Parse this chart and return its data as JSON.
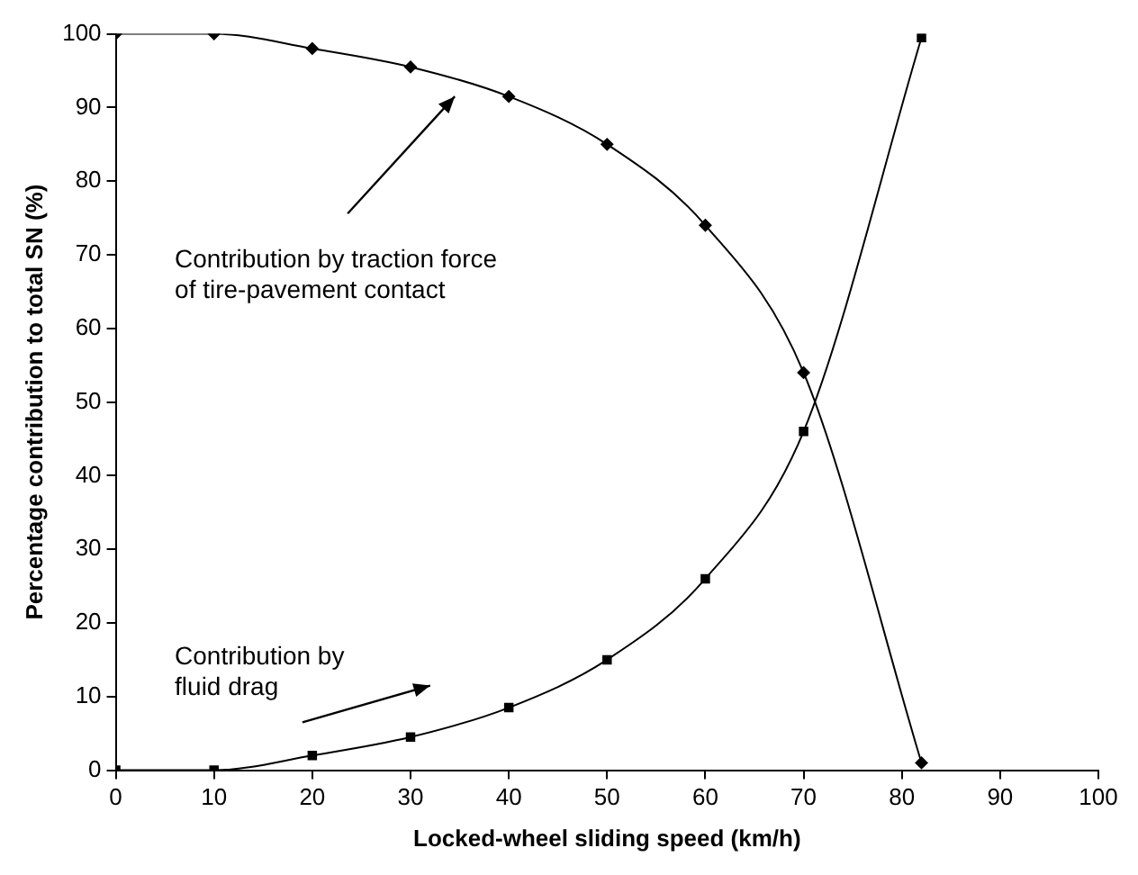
{
  "chart_data": {
    "type": "line",
    "xlabel": "Locked-wheel sliding speed (km/h)",
    "ylabel": "Percentage contribution to total SN (%)",
    "xlim": [
      0,
      100
    ],
    "xticks": [
      0,
      10,
      20,
      30,
      40,
      50,
      60,
      70,
      80,
      90,
      100
    ],
    "ylim": [
      0,
      100
    ],
    "yticks": [
      0,
      10,
      20,
      30,
      40,
      50,
      60,
      70,
      80,
      90,
      100
    ],
    "grid": false,
    "legend": false,
    "series": [
      {
        "color": "#000000",
        "marker": "diamond",
        "x": [
          0,
          10,
          20,
          30,
          40,
          50,
          60,
          70,
          82
        ],
        "values": [
          100,
          100,
          98,
          95.5,
          91.5,
          85,
          74,
          54,
          1
        ]
      },
      {
        "color": "#000000",
        "marker": "square",
        "x": [
          0,
          10,
          20,
          30,
          40,
          50,
          60,
          70,
          82
        ],
        "values": [
          0,
          0,
          2,
          4.5,
          8.5,
          15,
          26,
          46,
          99.5
        ]
      }
    ],
    "annotations": [
      "Contribution by traction force of tire-pavement contact",
      "Contribution by fluid drag"
    ]
  }
}
